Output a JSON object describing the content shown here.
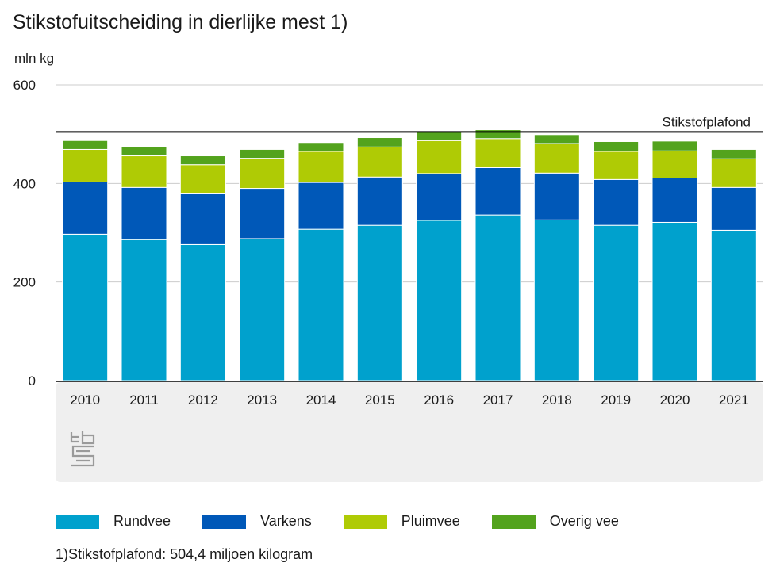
{
  "title": "Stikstofuitscheiding in dierlijke mest 1)",
  "footnote": "1)Stikstofplafond: 504,4 miljoen kilogram",
  "logo_icon": "cbs-logo-icon",
  "colors": {
    "rundvee": "#00a1cd",
    "varkens": "#0058b8",
    "pluimvee": "#afcb05",
    "overig": "#53a31d",
    "panel": "#efefef",
    "grid": "#cccccc",
    "ceiling": "#000000"
  },
  "chart_data": {
    "type": "bar",
    "stacked": true,
    "ylabel": "mln kg",
    "ylim": [
      0,
      600
    ],
    "yticks": [
      0,
      200,
      400,
      600
    ],
    "grid": true,
    "legend_position": "bottom",
    "categories": [
      "2010",
      "2011",
      "2012",
      "2013",
      "2014",
      "2015",
      "2016",
      "2017",
      "2018",
      "2019",
      "2020",
      "2021"
    ],
    "series": [
      {
        "name": "Rundvee",
        "color": "#00a1cd",
        "values": [
          297,
          286,
          276,
          288,
          307,
          315,
          325,
          336,
          326,
          315,
          321,
          305
        ]
      },
      {
        "name": "Varkens",
        "color": "#0058b8",
        "values": [
          106,
          106,
          103,
          102,
          95,
          98,
          95,
          96,
          95,
          93,
          90,
          87
        ]
      },
      {
        "name": "Pluimvee",
        "color": "#afcb05",
        "values": [
          66,
          64,
          59,
          61,
          63,
          61,
          67,
          59,
          60,
          57,
          55,
          58
        ]
      },
      {
        "name": "Overig vee",
        "color": "#53a31d",
        "values": [
          18,
          18,
          18,
          18,
          18,
          19,
          18,
          18,
          18,
          20,
          20,
          19
        ]
      }
    ],
    "reference_line": {
      "label": "Stikstofplafond",
      "value": 504.4
    }
  }
}
